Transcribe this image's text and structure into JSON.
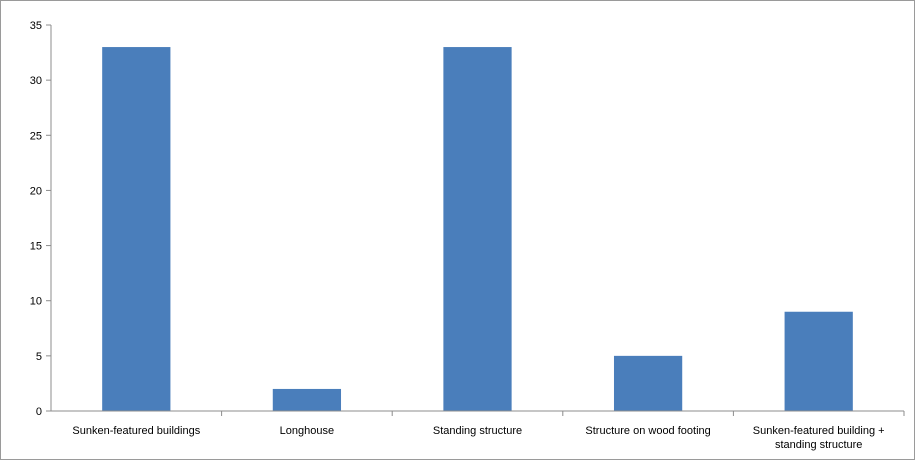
{
  "chart_data": {
    "type": "bar",
    "title": "",
    "xlabel": "",
    "ylabel": "",
    "categories": [
      [
        "Sunken-featured buildings"
      ],
      [
        "Longhouse"
      ],
      [
        "Standing structure"
      ],
      [
        "Structure on wood footing"
      ],
      [
        "Sunken-featured building +",
        "standing structure"
      ]
    ],
    "values": [
      33,
      2,
      33,
      5,
      9
    ],
    "ylim": [
      0,
      35
    ],
    "yticks": [
      0,
      5,
      10,
      15,
      20,
      25,
      30,
      35
    ],
    "grid": false,
    "legend": "none",
    "bar_color": "#4a7ebb",
    "axis_color": "#8c8c8c"
  }
}
